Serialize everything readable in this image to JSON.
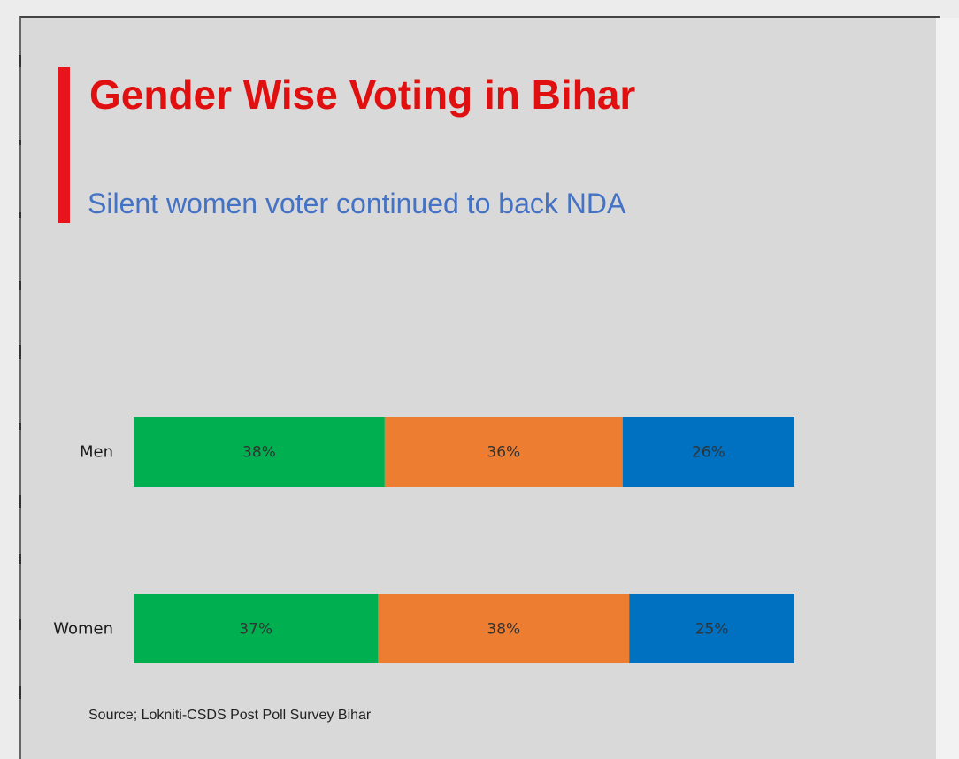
{
  "title": "Gender Wise Voting in Bihar",
  "subtitle": "Silent women voter continued to back NDA",
  "source": "Source; Lokniti-CSDS Post Poll Survey  Bihar",
  "colors": {
    "title": "#e01010",
    "subtitle": "#4472c4",
    "accent_bar": "#e8141b",
    "segments": [
      "#00b050",
      "#ed7d31",
      "#0070c0"
    ]
  },
  "chart_data": {
    "type": "bar",
    "orientation": "horizontal",
    "stacked": true,
    "categories": [
      "Men",
      "Women"
    ],
    "series": [
      {
        "name": "",
        "values": [
          38,
          37
        ]
      },
      {
        "name": "",
        "values": [
          36,
          38
        ]
      },
      {
        "name": "",
        "values": [
          26,
          25
        ]
      }
    ],
    "data_labels": [
      [
        "38%",
        "36%",
        "26%"
      ],
      [
        "37%",
        "38%",
        "25%"
      ]
    ],
    "xlim": [
      0,
      100
    ],
    "grid": false,
    "legend": "none"
  }
}
